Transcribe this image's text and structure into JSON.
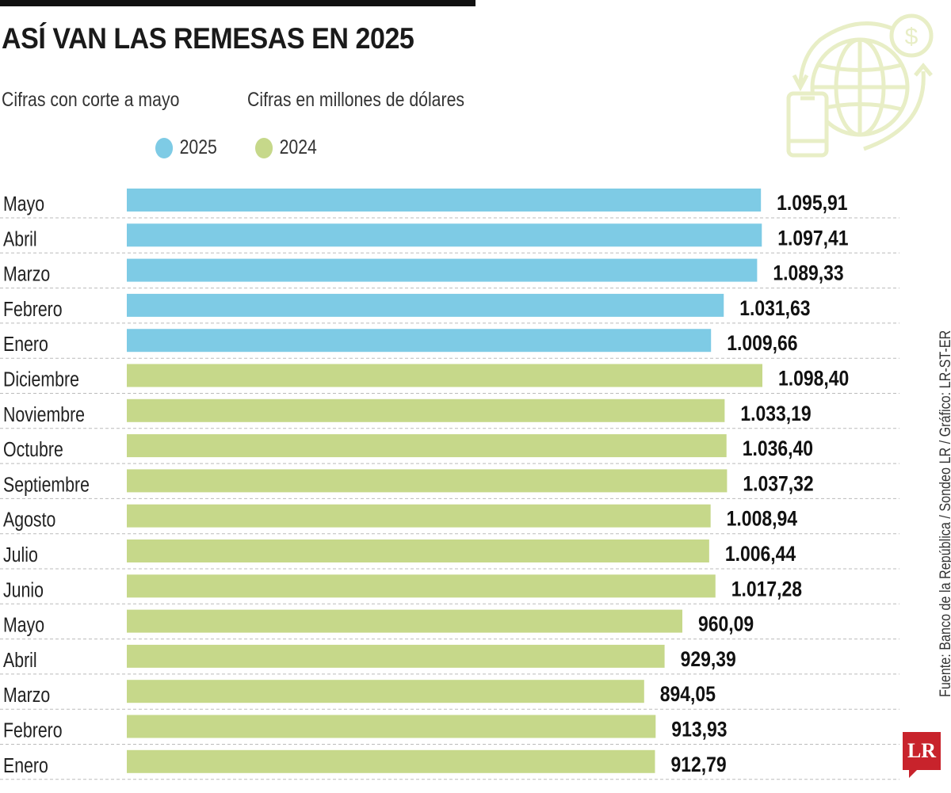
{
  "chart_data": {
    "type": "bar",
    "orientation": "horizontal",
    "title": "ASÍ VAN LAS REMESAS EN 2025",
    "subtitle_left": "Cifras con corte a mayo",
    "subtitle_right": "Cifras en millones de dólares",
    "legend": [
      {
        "name": "2025",
        "color": "#7ecbe5"
      },
      {
        "name": "2024",
        "color": "#c6d88a"
      }
    ],
    "categories": [
      "Mayo",
      "Abril",
      "Marzo",
      "Febrero",
      "Enero",
      "Diciembre",
      "Noviembre",
      "Octubre",
      "Septiembre",
      "Agosto",
      "Julio",
      "Junio",
      "Mayo",
      "Abril",
      "Marzo",
      "Febrero",
      "Enero"
    ],
    "years": [
      "2025",
      "2025",
      "2025",
      "2025",
      "2025",
      "2024",
      "2024",
      "2024",
      "2024",
      "2024",
      "2024",
      "2024",
      "2024",
      "2024",
      "2024",
      "2024",
      "2024"
    ],
    "values": [
      1095.91,
      1097.41,
      1089.33,
      1031.63,
      1009.66,
      1098.4,
      1033.19,
      1036.4,
      1037.32,
      1008.94,
      1006.44,
      1017.28,
      960.09,
      929.39,
      894.05,
      913.93,
      912.79
    ],
    "value_labels": [
      "1.095,91",
      "1.097,41",
      "1.089,33",
      "1.031,63",
      "1.009,66",
      "1.098,40",
      "1.033,19",
      "1.036,40",
      "1.037,32",
      "1.008,94",
      "1.006,44",
      "1.017,28",
      "960,09",
      "929,39",
      "894,05",
      "913,93",
      "912,79"
    ],
    "xlim": [
      0,
      1100
    ],
    "grid": false
  },
  "source": "Fuente:  Banco de la República / Sondeo LR / Gráfico: LR-ST-ER",
  "logo": "LR",
  "icon": "globe-remittance-icon"
}
